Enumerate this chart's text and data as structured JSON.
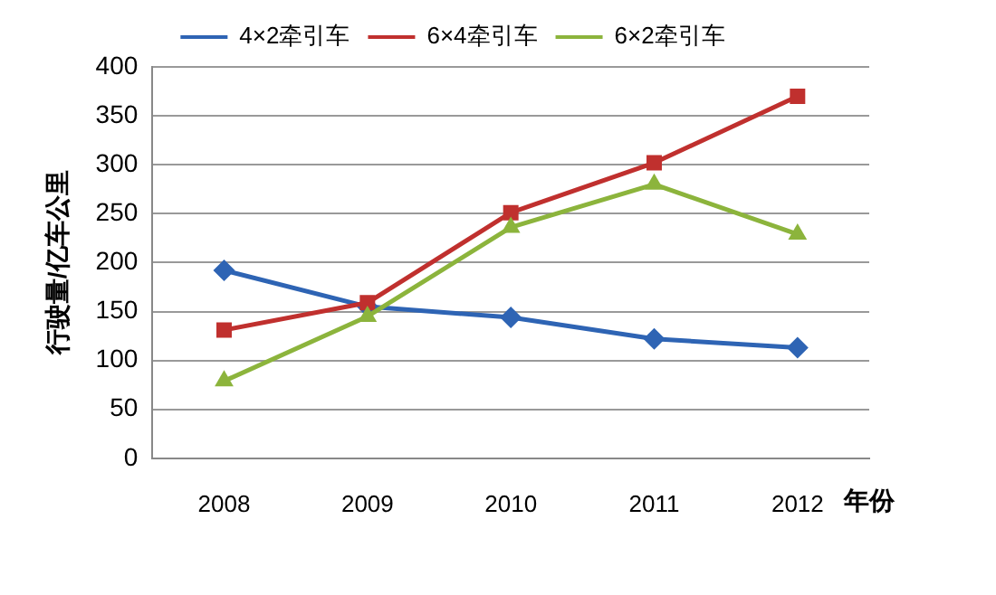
{
  "chart_data": {
    "type": "line",
    "xlabel": "年份",
    "ylabel": "行驶量/亿车公里",
    "categories": [
      "2008",
      "2009",
      "2010",
      "2011",
      "2012"
    ],
    "series": [
      {
        "name": "4×2牵引车",
        "color": "#2e64b4",
        "marker": "diamond",
        "values": [
          192,
          155,
          144,
          122,
          113
        ]
      },
      {
        "name": "6×4牵引车",
        "color": "#c0302e",
        "marker": "square",
        "values": [
          131,
          159,
          251,
          302,
          370
        ]
      },
      {
        "name": "6×2牵引车",
        "color": "#8cb43c",
        "marker": "triangle",
        "values": [
          79,
          145,
          236,
          280,
          229
        ]
      }
    ],
    "ylim": [
      0,
      400
    ],
    "yticks": [
      0,
      50,
      100,
      150,
      200,
      250,
      300,
      350,
      400
    ],
    "grid": "y",
    "legend": "top",
    "line_style": "solid"
  }
}
